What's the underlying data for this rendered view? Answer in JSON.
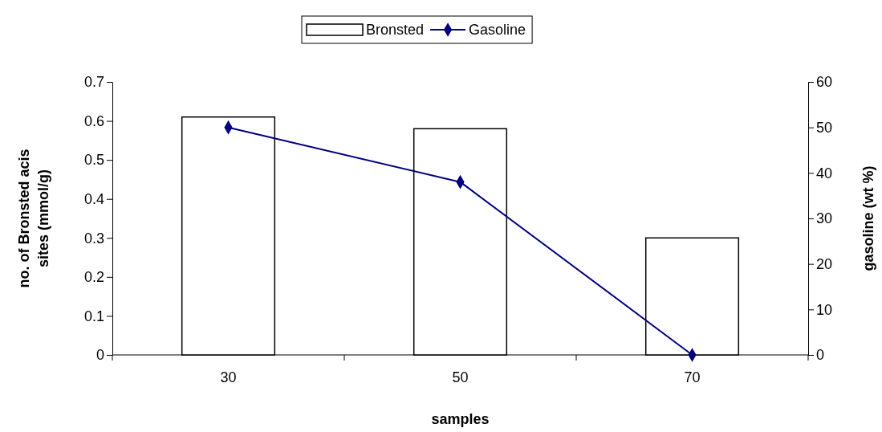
{
  "chart_data": {
    "type": "bar",
    "xlabel": "samples",
    "ylabel": "no. of Bronsted acis sites (mmol/g)",
    "y2label": "gasoline (wt %)",
    "categories": [
      "30",
      "50",
      "70"
    ],
    "series": [
      {
        "name": "Bronsted",
        "color": "#ffffff",
        "values": [
          0.61,
          0.58,
          0.3
        ]
      },
      {
        "name": "Gasoline",
        "type": "line",
        "axis": "y2",
        "color": "#000080",
        "values": [
          50,
          38,
          0
        ],
        "marker": "diamond"
      }
    ],
    "ylim": [
      0,
      0.7
    ],
    "yticks": [
      0,
      0.1,
      0.2,
      0.3,
      0.4,
      0.5,
      0.6,
      0.7
    ],
    "y2lim": [
      0,
      60
    ],
    "y2ticks": [
      0,
      10,
      20,
      30,
      40,
      50,
      60
    ],
    "legend": "top",
    "grid": false
  }
}
